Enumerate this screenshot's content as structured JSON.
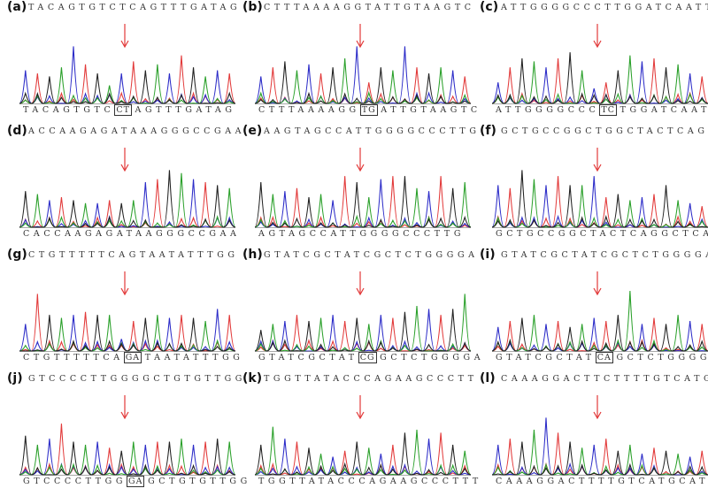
{
  "panels": [
    {
      "label": "(a)",
      "ref": "TACAGTGTCTCAGTTTGATAG",
      "pre": "TACAGTGTC",
      "box": "CT",
      "post": "AGTTTGATAG",
      "seed": 3,
      "peak_heights": [
        0.55,
        0.5,
        0.45,
        0.6,
        0.95,
        0.65,
        0.5,
        0.3,
        0.5,
        0.7,
        0.55,
        0.65,
        0.5,
        0.8,
        0.6,
        0.45,
        0.55,
        0.5
      ]
    },
    {
      "label": "(b)",
      "ref": "CTTTAAAAGGTATTGTAAGTC",
      "pre": "CTTTAAAAGG",
      "box": "TG",
      "post": "ATTGTAAGTC",
      "seed": 7,
      "peak_heights": [
        0.45,
        0.6,
        0.7,
        0.55,
        0.65,
        0.5,
        0.6,
        0.75,
        0.95,
        0.35,
        0.6,
        0.55,
        0.95,
        0.6,
        0.5,
        0.6,
        0.55,
        0.45
      ]
    },
    {
      "label": "(c)",
      "ref": "ATTGGGGCCCTTGGATCAATT",
      "pre": "ATTGGGGCCC",
      "box": "TC",
      "post": "TGGATCAATT",
      "seed": 11,
      "peak_heights": [
        0.35,
        0.6,
        0.75,
        0.7,
        0.6,
        0.75,
        0.85,
        0.55,
        0.25,
        0.35,
        0.55,
        0.8,
        0.7,
        0.75,
        0.6,
        0.65,
        0.5,
        0.45
      ]
    },
    {
      "label": "(d)",
      "ref": "ACCAAGAGATAAAGGGCCGAA",
      "pre": "CACCAAGAGATAAGGGCCGAA",
      "box": "",
      "post": "",
      "seed": 13,
      "peak_heights": [
        0.6,
        0.55,
        0.45,
        0.5,
        0.45,
        0.4,
        0.4,
        0.45,
        0.4,
        0.45,
        0.75,
        0.8,
        0.95,
        0.9,
        0.8,
        0.75,
        0.7,
        0.65
      ]
    },
    {
      "label": "(e)",
      "ref": "AAGTAGCCATTGGGGCCCTTG",
      "pre": "AGTAGCCATTGGGGCCCTTG",
      "box": "",
      "post": "",
      "seed": 17,
      "peak_heights": [
        0.75,
        0.55,
        0.6,
        0.65,
        0.5,
        0.55,
        0.45,
        0.85,
        0.75,
        0.5,
        0.8,
        0.85,
        0.85,
        0.65,
        0.6,
        0.85,
        0.65,
        0.75
      ]
    },
    {
      "label": "(f)",
      "ref": "GCTGCCGGCTGGCTACTCAGG",
      "pre": "GCTGCCGGCTACTCAGGCTCA",
      "box": "",
      "post": "",
      "seed": 19,
      "peak_heights": [
        0.7,
        0.65,
        0.95,
        0.8,
        0.7,
        0.85,
        0.7,
        0.7,
        0.85,
        0.5,
        0.55,
        0.45,
        0.5,
        0.55,
        0.7,
        0.45,
        0.4,
        0.35
      ]
    },
    {
      "label": "(g)",
      "ref": "CTGTTTTTCAGTAATATTTGG",
      "pre": "CTGTTTTTCA",
      "box": "GA",
      "post": "TAATATTTGG",
      "seed": 23,
      "peak_heights": [
        0.45,
        0.95,
        0.6,
        0.55,
        0.6,
        0.65,
        0.6,
        0.6,
        0.2,
        0.5,
        0.55,
        0.6,
        0.55,
        0.6,
        0.55,
        0.5,
        0.7,
        0.6
      ]
    },
    {
      "label": "(h)",
      "ref": "GTATCGCTATCGCTCTGGGGA",
      "pre": "GTATCGCTAT",
      "box": "CG",
      "post": "GCTCTGGGGA",
      "seed": 29,
      "peak_heights": [
        0.35,
        0.45,
        0.5,
        0.6,
        0.5,
        0.55,
        0.6,
        0.5,
        0.55,
        0.45,
        0.6,
        0.55,
        0.65,
        0.75,
        0.7,
        0.6,
        0.7,
        0.95
      ]
    },
    {
      "label": "(i)",
      "ref": "GTATCGCTATCGCTCTGGGGA",
      "pre": "GTATCGCTAT",
      "box": "CA",
      "post": "GCTCTGGGGA",
      "seed": 31,
      "peak_heights": [
        0.4,
        0.5,
        0.55,
        0.6,
        0.45,
        0.5,
        0.4,
        0.45,
        0.55,
        0.5,
        0.6,
        1.0,
        0.45,
        0.55,
        0.45,
        0.6,
        0.5,
        0.45
      ]
    },
    {
      "label": "(j)",
      "ref": "GTCCCCTTGGGGCTGTGTTGG",
      "pre": "GTCCCCTTGG",
      "box": "GA",
      "post": "GCTGTGTTGG",
      "seed": 37,
      "peak_heights": [
        0.65,
        0.5,
        0.6,
        0.85,
        0.55,
        0.5,
        0.55,
        0.45,
        0.4,
        0.55,
        0.5,
        0.55,
        0.55,
        0.6,
        0.5,
        0.55,
        0.6,
        0.55
      ]
    },
    {
      "label": "(k)",
      "ref": "TGGTTATACCCAGAAGCCCTT",
      "pre": "TGGTTATACCCAGAAGCCCTTT",
      "box": "",
      "post": "",
      "seed": 41,
      "peak_heights": [
        0.5,
        0.8,
        0.6,
        0.55,
        0.45,
        0.35,
        0.3,
        0.4,
        0.55,
        0.45,
        0.35,
        0.5,
        0.7,
        0.75,
        0.6,
        0.7,
        0.5,
        0.4
      ]
    },
    {
      "label": "(l)",
      "ref": "CAAAGGACTTCTTTTGTCATG",
      "pre": "CAAAGGACTTTTGTCATGCAT",
      "box": "",
      "post": "",
      "seed": 43,
      "peak_heights": [
        0.5,
        0.6,
        0.55,
        0.75,
        0.95,
        0.7,
        0.55,
        0.45,
        0.5,
        0.6,
        0.4,
        0.5,
        0.35,
        0.45,
        0.4,
        0.35,
        0.3,
        0.4
      ]
    }
  ],
  "colors": {
    "A": "#2aa02a",
    "C": "#2c2cc8",
    "G": "#222222",
    "T": "#e23a3a",
    "arrow": "#e23a3a"
  }
}
